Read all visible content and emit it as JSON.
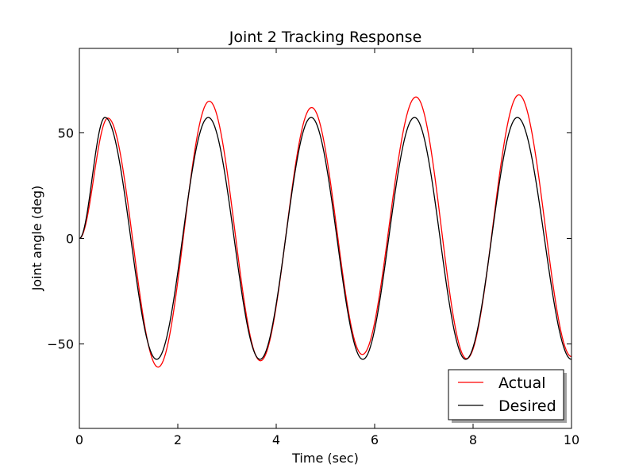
{
  "chart_data": {
    "type": "line",
    "title": "Joint 2 Tracking Response",
    "xlabel": "Time (sec)",
    "ylabel": "Joint angle (deg)",
    "xlim": [
      0,
      10
    ],
    "ylim": [
      -90,
      90
    ],
    "xticks": [
      0,
      2,
      4,
      6,
      8,
      10
    ],
    "xtick_labels": [
      "0",
      "2",
      "4",
      "6",
      "8",
      "10"
    ],
    "yticks": [
      -50,
      0,
      50
    ],
    "ytick_labels": [
      "−50",
      "0",
      "50"
    ],
    "grid": false,
    "legend_position": "bottom-right",
    "series": [
      {
        "name": "Actual",
        "color": "#ff0000",
        "x": [
          0,
          0.58,
          1.6,
          2.64,
          3.68,
          4.72,
          5.75,
          6.84,
          7.87,
          8.93,
          10.0
        ],
        "y": [
          0,
          57,
          -61,
          65,
          -58,
          62,
          -55,
          67,
          -57,
          68,
          -56
        ]
      },
      {
        "name": "Desired",
        "color": "#000000",
        "x": [
          0,
          0.52,
          1.57,
          2.62,
          3.67,
          4.71,
          5.76,
          6.81,
          7.85,
          8.9,
          10.0
        ],
        "y": [
          0,
          57.3,
          -57.3,
          57.3,
          -57.3,
          57.3,
          -57.3,
          57.3,
          -57.3,
          57.3,
          -57.3
        ]
      }
    ]
  }
}
